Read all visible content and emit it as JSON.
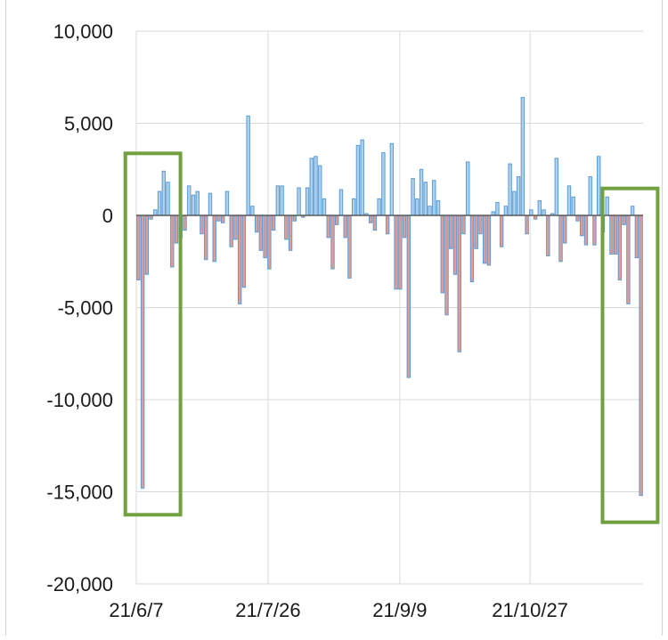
{
  "chart_data": {
    "type": "bar",
    "x_tick_labels": [
      "21/6/7",
      "21/7/26",
      "21/9/9",
      "21/10/27"
    ],
    "ylim": [
      -20000,
      10000
    ],
    "y_ticks": [
      10000,
      5000,
      0,
      -5000,
      -10000,
      -15000,
      -20000
    ],
    "y_tick_labels": [
      "10,000",
      "5,000",
      "0",
      "-5,000",
      "-10,000",
      "-15,000",
      "-20,000"
    ],
    "grid": {
      "vertical": true,
      "horizontal": true
    },
    "legend": "none",
    "colors": {
      "positive_fill": "#aed3ef",
      "positive_edge": "#5b9bd5",
      "negative_fill": "#e79a92",
      "negative_edge": "#5b9bd5",
      "highlight_box": "#70a040",
      "grid": "#d9d9d9"
    },
    "values": [
      -3500,
      -14800,
      -3200,
      -200,
      300,
      1300,
      2400,
      1800,
      -2800,
      -1500,
      -1200,
      -800,
      1600,
      1100,
      1300,
      -1000,
      -2400,
      1200,
      -2500,
      -300,
      -400,
      1300,
      -1700,
      -1300,
      -4800,
      -3900,
      5400,
      500,
      -900,
      -1900,
      -2300,
      -2900,
      -800,
      1600,
      1600,
      -1300,
      -1900,
      -300,
      1500,
      -100,
      1500,
      3100,
      3200,
      2700,
      900,
      -1200,
      -2900,
      -500,
      1400,
      -1200,
      -3400,
      900,
      3800,
      4100,
      100,
      -400,
      -800,
      900,
      3400,
      -1000,
      3900,
      -4000,
      -4000,
      -1200,
      -8800,
      2000,
      900,
      2500,
      1800,
      500,
      1900,
      800,
      -4200,
      -5400,
      -1800,
      -3200,
      -7400,
      -1000,
      2900,
      -3600,
      -1800,
      -1000,
      -2600,
      -2700,
      200,
      700,
      -1700,
      500,
      2800,
      1300,
      2100,
      6400,
      -1000,
      300,
      -200,
      800,
      300,
      -2200,
      100,
      3100,
      -2500,
      -1500,
      1600,
      1000,
      -300,
      -1100,
      -1600,
      2100,
      -1600,
      3200,
      -900,
      1000,
      -2100,
      -2100,
      -3500,
      -500,
      -4800,
      500,
      -2300,
      -15200
    ],
    "highlight_boxes": [
      {
        "from_index": 0,
        "to_index": 6
      },
      {
        "from_index": 113,
        "to_index": 119
      }
    ]
  }
}
